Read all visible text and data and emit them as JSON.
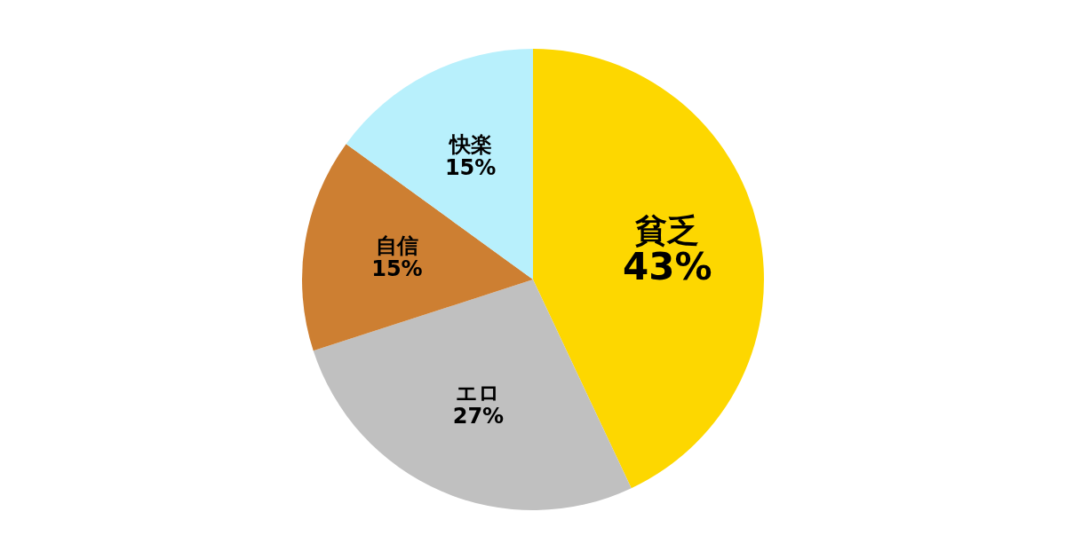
{
  "chart_data": {
    "type": "pie",
    "categories": [
      "貧乏",
      "エロ",
      "自信",
      "快楽"
    ],
    "values": [
      43,
      27,
      15,
      15
    ],
    "colors": [
      "#fdd700",
      "#c0c0c0",
      "#cd7f32",
      "#b8f0fc"
    ],
    "value_labels": [
      "43%",
      "27%",
      "15%",
      "15%"
    ]
  }
}
